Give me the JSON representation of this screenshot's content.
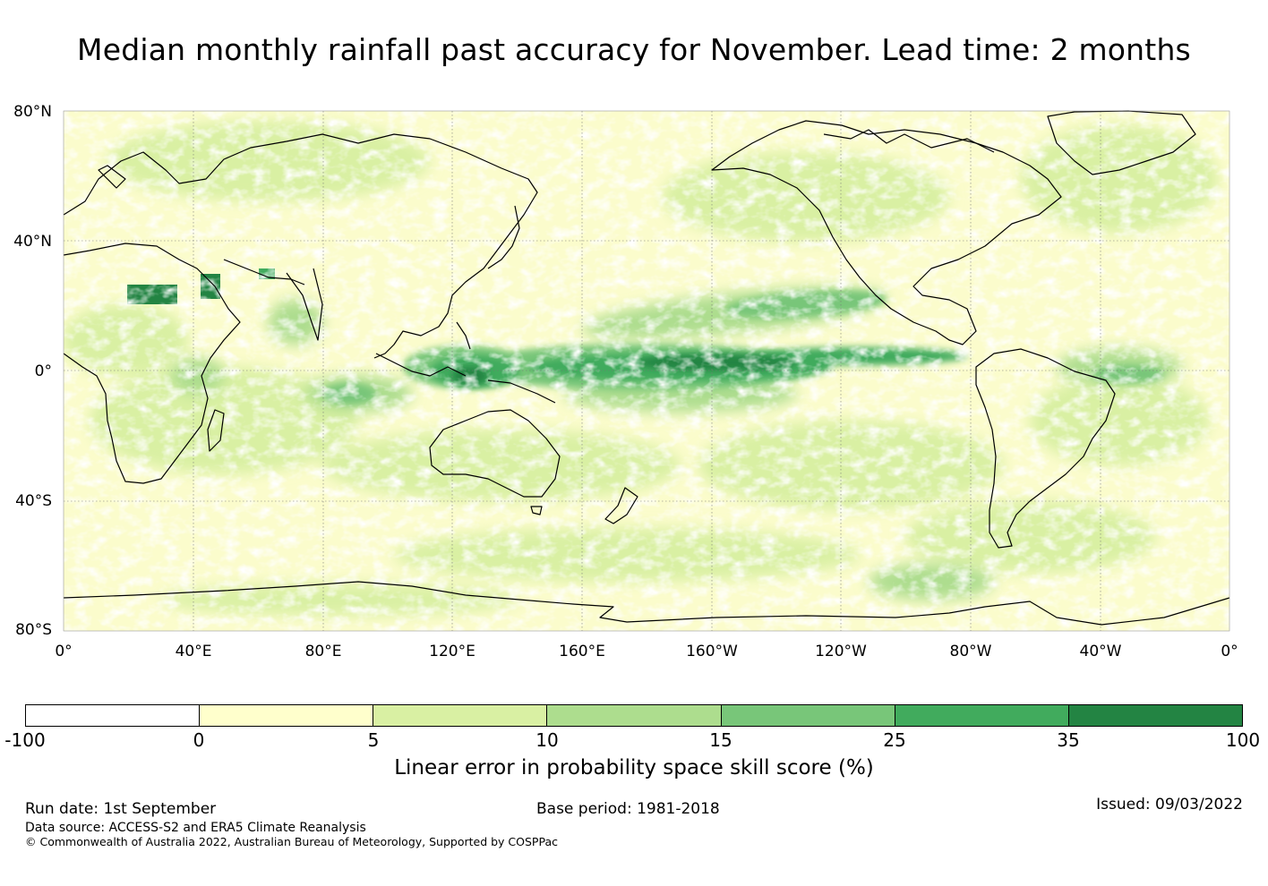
{
  "title": "Median monthly rainfall past accuracy for November. Lead time: 2 months",
  "map": {
    "lat_labels": [
      "80°N",
      "40°N",
      "0°",
      "40°S",
      "80°S"
    ],
    "lon_labels": [
      "0°",
      "40°E",
      "80°E",
      "120°E",
      "160°E",
      "160°W",
      "120°W",
      "80°W",
      "40°W",
      "0°"
    ],
    "extent": {
      "lon": [
        0,
        360
      ],
      "lat": [
        -80,
        80
      ]
    },
    "gridlines": true
  },
  "colorbar": {
    "title": "Linear error in probability space skill score (%)",
    "ticks": [
      "-100",
      "0",
      "5",
      "10",
      "15",
      "25",
      "35",
      "100"
    ],
    "colors": [
      "#ffffff",
      "#ffffcc",
      "#d9f0a3",
      "#addd8e",
      "#78c679",
      "#41ab5d",
      "#238443"
    ]
  },
  "footer": {
    "run_date": "Run date: 1st September",
    "base_period": "Base period: 1981-2018",
    "issued": "Issued: 09/03/2022",
    "data_source": "Data source: ACCESS-S2 and ERA5 Climate Reanalysis",
    "copyright": "© Commonwealth of Australia 2022, Australian Bureau of Meteorology, Supported by COSPPac"
  }
}
